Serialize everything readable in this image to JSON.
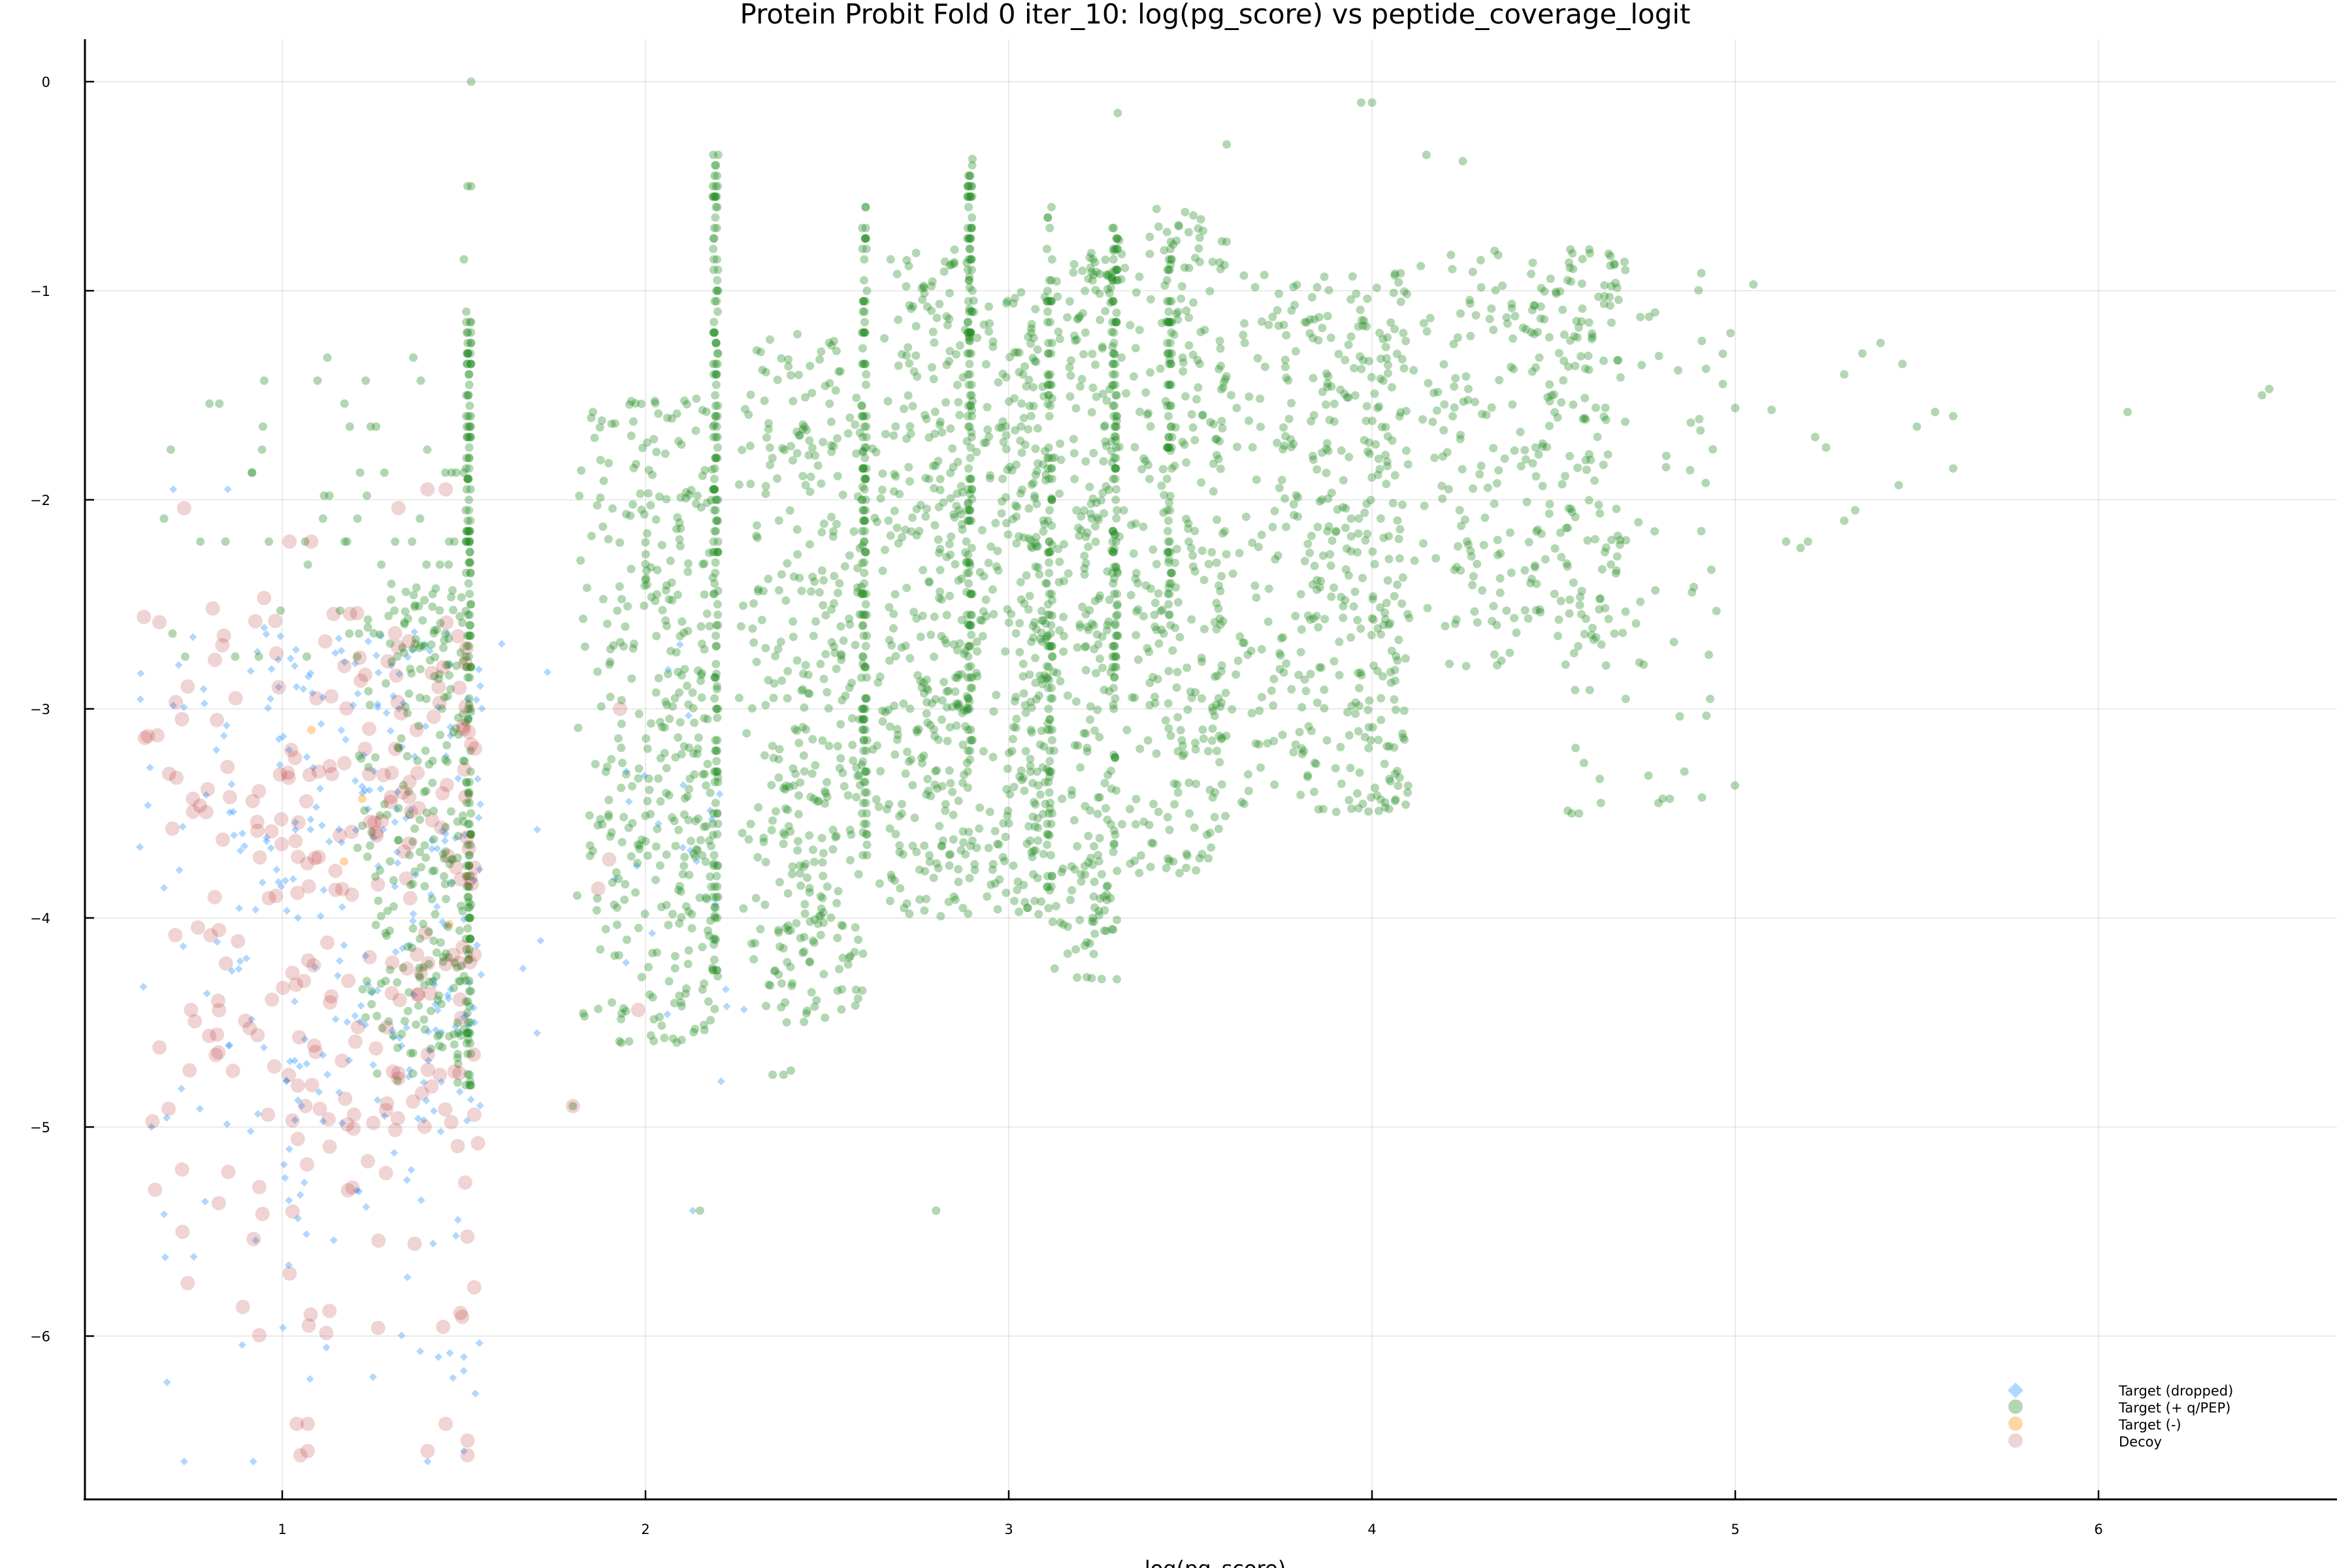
{
  "chart_data": {
    "type": "scatter",
    "title": "Protein Probit Fold 0 iter_10: log(pg_score) vs peptide_coverage_logit",
    "xlabel": "log(pg_score)",
    "ylabel": "",
    "xlim": [
      0.45,
      6.68
    ],
    "ylim": [
      -6.78,
      0.2
    ],
    "grid": true,
    "legend_position": "bottom-right",
    "x_ticks": [
      1,
      2,
      3,
      4,
      5,
      6
    ],
    "y_ticks": [
      0,
      -1,
      -2,
      -3,
      -4,
      -5,
      -6
    ],
    "x_tick_labels": [
      "1",
      "2",
      "3",
      "4",
      "5",
      "6"
    ],
    "y_tick_labels": [
      "0",
      "−1",
      "−2",
      "−3",
      "−4",
      "−5",
      "−6"
    ],
    "legend": [
      {
        "label": "Target (dropped)",
        "marker": "diamond",
        "color": "#1e90ff"
      },
      {
        "label": "Target (+ q/PEP)",
        "marker": "circle",
        "color": "#228b22"
      },
      {
        "label": "Target (-)",
        "marker": "circle",
        "color": "#ff8c00"
      },
      {
        "label": "Decoy",
        "marker": "circle",
        "color": "#b22222"
      }
    ],
    "series": [
      {
        "name": "Target (dropped)",
        "marker": "diamond",
        "color": "#1e90ff",
        "alpha": 0.35,
        "size": 10,
        "description": "Sparse points concentrated at log(pg_score) 0.6-1.55, y -6.6 to -1.9",
        "clusters": [
          {
            "x": [
              0.6,
              1.55
            ],
            "y": [
              -5.0,
              -2.6
            ],
            "n": 260,
            "seed": 11
          },
          {
            "x": [
              0.65,
              1.55
            ],
            "y": [
              -6.3,
              -5.0
            ],
            "n": 40,
            "seed": 12
          },
          {
            "x": [
              1.6,
              2.3
            ],
            "y": [
              -4.8,
              -2.6
            ],
            "n": 30,
            "seed": 13
          }
        ],
        "points": [
          [
            0.73,
            -6.6
          ],
          [
            0.92,
            -6.6
          ],
          [
            1.4,
            -6.6
          ],
          [
            1.5,
            -6.55
          ],
          [
            1.47,
            -6.2
          ],
          [
            1.5,
            -6.1
          ],
          [
            1.43,
            -6.1
          ],
          [
            0.7,
            -1.95
          ],
          [
            0.85,
            -1.95
          ],
          [
            2.13,
            -5.4
          ]
        ]
      },
      {
        "name": "Target (+ q/PEP)",
        "marker": "circle",
        "color": "#228b22",
        "alpha": 0.35,
        "size": 13,
        "description": "Main population; dense vertical stripes at discrete log(pg_score) values with spread to the right",
        "clusters": [
          {
            "x": [
              1.52,
              1.52
            ],
            "y": [
              -4.85,
              -1.1
            ],
            "n": 170,
            "seed": 21,
            "quantize": 0.05
          },
          {
            "x": [
              1.2,
              1.52
            ],
            "y": [
              -4.8,
              -2.4
            ],
            "n": 260,
            "seed": 22
          },
          {
            "x": [
              0.65,
              1.5
            ],
            "y": [
              -2.8,
              -1.3
            ],
            "n": 60,
            "seed": 23,
            "quantize": 0.11
          },
          {
            "x": [
              2.2,
              2.2
            ],
            "y": [
              -4.3,
              -0.35
            ],
            "n": 150,
            "seed": 24,
            "quantize": 0.05
          },
          {
            "x": [
              1.8,
              2.2
            ],
            "y": [
              -4.6,
              -1.5
            ],
            "n": 380,
            "seed": 25
          },
          {
            "x": [
              2.61,
              2.61
            ],
            "y": [
              -3.7,
              -0.6
            ],
            "n": 130,
            "seed": 26,
            "quantize": 0.05
          },
          {
            "x": [
              2.25,
              2.6
            ],
            "y": [
              -4.5,
              -1.2
            ],
            "n": 380,
            "seed": 27
          },
          {
            "x": [
              2.9,
              2.9
            ],
            "y": [
              -3.2,
              -0.4
            ],
            "n": 120,
            "seed": 28,
            "quantize": 0.05
          },
          {
            "x": [
              2.62,
              2.9
            ],
            "y": [
              -4.0,
              -0.8
            ],
            "n": 360,
            "seed": 29
          },
          {
            "x": [
              3.12,
              3.12
            ],
            "y": [
              -3.9,
              -0.6
            ],
            "n": 100,
            "seed": 30,
            "quantize": 0.05
          },
          {
            "x": [
              2.9,
              3.12
            ],
            "y": [
              -4.0,
              -1.0
            ],
            "n": 300,
            "seed": 31
          },
          {
            "x": [
              3.3,
              3.3
            ],
            "y": [
              -3.0,
              -0.7
            ],
            "n": 90,
            "seed": 32,
            "quantize": 0.05
          },
          {
            "x": [
              3.12,
              3.3
            ],
            "y": [
              -4.3,
              -0.8
            ],
            "n": 280,
            "seed": 33
          },
          {
            "x": [
              3.45,
              3.45
            ],
            "y": [
              -2.6,
              -0.8
            ],
            "n": 70,
            "seed": 34,
            "quantize": 0.05
          },
          {
            "x": [
              3.3,
              3.6
            ],
            "y": [
              -3.8,
              -0.6
            ],
            "n": 300,
            "seed": 35
          },
          {
            "x": [
              3.6,
              4.1
            ],
            "y": [
              -3.5,
              -0.9
            ],
            "n": 420,
            "seed": 36
          },
          {
            "x": [
              4.1,
              4.7
            ],
            "y": [
              -2.8,
              -0.8
            ],
            "n": 300,
            "seed": 37
          },
          {
            "x": [
              4.5,
              5.0
            ],
            "y": [
              -3.5,
              -0.9
            ],
            "n": 70,
            "seed": 38
          }
        ],
        "points": [
          [
            1.52,
            0.0
          ],
          [
            1.51,
            -0.5
          ],
          [
            1.52,
            -0.5
          ],
          [
            1.5,
            -0.85
          ],
          [
            2.2,
            -0.35
          ],
          [
            3.3,
            -0.15
          ],
          [
            3.97,
            -0.1
          ],
          [
            4.0,
            -0.1
          ],
          [
            2.9,
            -0.37
          ],
          [
            3.6,
            -0.3
          ],
          [
            4.15,
            -0.35
          ],
          [
            4.25,
            -0.38
          ],
          [
            5.05,
            -0.97
          ],
          [
            5.1,
            -1.57
          ],
          [
            5.3,
            -1.4
          ],
          [
            5.35,
            -1.3
          ],
          [
            5.4,
            -1.25
          ],
          [
            5.46,
            -1.35
          ],
          [
            5.5,
            -1.65
          ],
          [
            5.55,
            -1.58
          ],
          [
            5.6,
            -1.6
          ],
          [
            5.6,
            -1.85
          ],
          [
            5.22,
            -1.7
          ],
          [
            5.25,
            -1.75
          ],
          [
            5.3,
            -2.1
          ],
          [
            5.33,
            -2.05
          ],
          [
            5.45,
            -1.93
          ],
          [
            5.14,
            -2.2
          ],
          [
            5.18,
            -2.23
          ],
          [
            5.2,
            -2.2
          ],
          [
            6.08,
            -1.58
          ],
          [
            6.45,
            -1.5
          ],
          [
            6.47,
            -1.47
          ],
          [
            2.8,
            -5.4
          ],
          [
            2.15,
            -5.4
          ],
          [
            1.8,
            -4.9
          ],
          [
            2.35,
            -4.75
          ],
          [
            2.38,
            -4.75
          ],
          [
            2.4,
            -4.73
          ],
          [
            4.86,
            -3.3
          ],
          [
            4.8,
            -3.43
          ],
          [
            4.82,
            -3.43
          ],
          [
            4.63,
            -3.45
          ],
          [
            4.57,
            -3.5
          ],
          [
            4.55,
            -3.5
          ]
        ]
      },
      {
        "name": "Target (-)",
        "marker": "circle",
        "color": "#ff8c00",
        "alpha": 0.35,
        "size": 13,
        "description": "Very few points, hidden among low-score region",
        "points": [
          [
            1.08,
            -3.1
          ],
          [
            1.22,
            -3.43
          ],
          [
            1.17,
            -3.73
          ],
          [
            1.46,
            -4.03
          ]
        ]
      },
      {
        "name": "Decoy",
        "marker": "circle",
        "color": "#b22222",
        "alpha": 0.2,
        "size": 22,
        "description": "Decoy proteins concentrated at log(pg_score) 0.6-1.55",
        "clusters": [
          {
            "x": [
              0.6,
              1.55
            ],
            "y": [
              -5.0,
              -2.5
            ],
            "n": 230,
            "seed": 41
          },
          {
            "x": [
              0.65,
              1.55
            ],
            "y": [
              -6.0,
              -5.0
            ],
            "n": 35,
            "seed": 42
          }
        ],
        "points": [
          [
            0.73,
            -2.04
          ],
          [
            0.95,
            -2.47
          ],
          [
            1.02,
            -2.2
          ],
          [
            1.08,
            -2.2
          ],
          [
            1.4,
            -1.95
          ],
          [
            1.45,
            -1.95
          ],
          [
            1.32,
            -2.04
          ],
          [
            1.04,
            -6.42
          ],
          [
            1.07,
            -6.42
          ],
          [
            1.45,
            -6.42
          ],
          [
            1.05,
            -6.57
          ],
          [
            1.07,
            -6.55
          ],
          [
            1.4,
            -6.55
          ],
          [
            1.51,
            -6.57
          ],
          [
            1.51,
            -6.5
          ],
          [
            1.8,
            -4.9
          ],
          [
            1.9,
            -3.72
          ],
          [
            1.98,
            -4.44
          ],
          [
            1.87,
            -3.86
          ],
          [
            1.93,
            -3.0
          ],
          [
            0.63,
            -3.13
          ],
          [
            0.65,
            -5.3
          ],
          [
            1.13,
            -5.88
          ]
        ]
      }
    ]
  },
  "legend": {
    "items": [
      {
        "label": "Target (dropped)"
      },
      {
        "label": "Target (+ q/PEP)"
      },
      {
        "label": "Target (-)"
      },
      {
        "label": "Decoy"
      }
    ]
  }
}
